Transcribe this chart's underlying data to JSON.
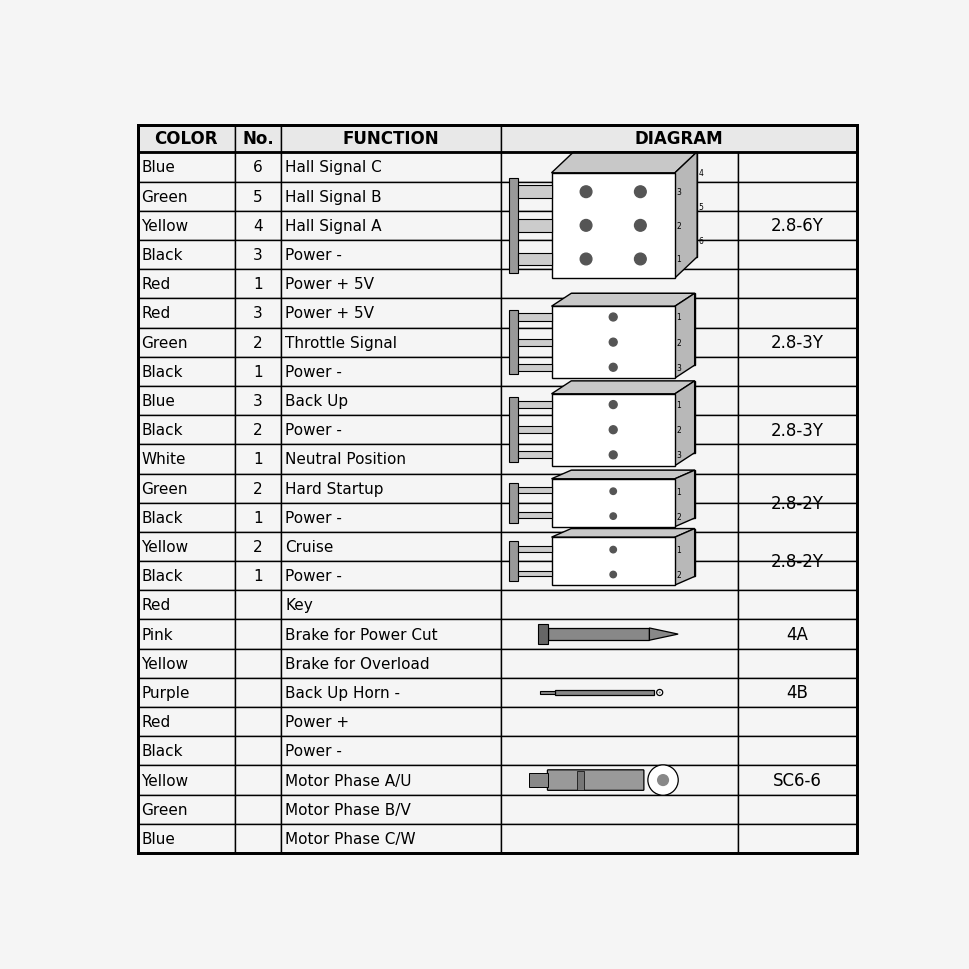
{
  "headers": [
    "COLOR",
    "No.",
    "FUNCTION",
    "DIAGRAM"
  ],
  "rows": [
    {
      "color": "Blue",
      "no": "6",
      "function": "Hall Signal C",
      "group": 0
    },
    {
      "color": "Green",
      "no": "5",
      "function": "Hall Signal B",
      "group": 0
    },
    {
      "color": "Yellow",
      "no": "4",
      "function": "Hall Signal A",
      "group": 0
    },
    {
      "color": "Black",
      "no": "3",
      "function": "Power -",
      "group": 0
    },
    {
      "color": "Red",
      "no": "1",
      "function": "Power + 5V",
      "group": 0
    },
    {
      "color": "Red",
      "no": "3",
      "function": "Power + 5V",
      "group": 1
    },
    {
      "color": "Green",
      "no": "2",
      "function": "Throttle Signal",
      "group": 1
    },
    {
      "color": "Black",
      "no": "1",
      "function": "Power -",
      "group": 1
    },
    {
      "color": "Blue",
      "no": "3",
      "function": "Back Up",
      "group": 2
    },
    {
      "color": "Black",
      "no": "2",
      "function": "Power -",
      "group": 2
    },
    {
      "color": "White",
      "no": "1",
      "function": "Neutral Position",
      "group": 2
    },
    {
      "color": "Green",
      "no": "2",
      "function": "Hard Startup",
      "group": 3
    },
    {
      "color": "Black",
      "no": "1",
      "function": "Power -",
      "group": 3
    },
    {
      "color": "Yellow",
      "no": "2",
      "function": "Cruise",
      "group": 4
    },
    {
      "color": "Black",
      "no": "1",
      "function": "Power -",
      "group": 4
    },
    {
      "color": "Red",
      "no": "",
      "function": "Key",
      "group": 5
    },
    {
      "color": "Pink",
      "no": "",
      "function": "Brake for Power Cut",
      "group": 5
    },
    {
      "color": "Yellow",
      "no": "",
      "function": "Brake for Overload",
      "group": 5
    },
    {
      "color": "Purple",
      "no": "",
      "function": "Back Up Horn -",
      "group": 6
    },
    {
      "color": "Red",
      "no": "",
      "function": "Power +",
      "group": 7
    },
    {
      "color": "Black",
      "no": "",
      "function": "Power -",
      "group": 7
    },
    {
      "color": "Yellow",
      "no": "",
      "function": "Motor Phase A/U",
      "group": 7
    },
    {
      "color": "Green",
      "no": "",
      "function": "Motor Phase B/V",
      "group": 7
    },
    {
      "color": "Blue",
      "no": "",
      "function": "Motor Phase C/W",
      "group": 7
    }
  ],
  "groups": [
    {
      "rows": [
        0,
        1,
        2,
        3,
        4
      ],
      "type": "6pin",
      "label": "2.8-6Y"
    },
    {
      "rows": [
        5,
        6,
        7
      ],
      "type": "3pin",
      "label": "2.8-3Y"
    },
    {
      "rows": [
        8,
        9,
        10
      ],
      "type": "3pin",
      "label": "2.8-3Y"
    },
    {
      "rows": [
        11,
        12
      ],
      "type": "2pin",
      "label": "2.8-2Y"
    },
    {
      "rows": [
        13,
        14
      ],
      "type": "2pin",
      "label": "2.8-2Y"
    },
    {
      "rows": [
        15,
        16,
        17
      ],
      "type": "fuse4A",
      "label": "4A"
    },
    {
      "rows": [
        18
      ],
      "type": "fuse4B",
      "label": "4B"
    },
    {
      "rows": [
        19,
        20,
        21,
        22,
        23
      ],
      "type": "sc66",
      "label": "SC6-6"
    }
  ],
  "bg_color": "#f5f5f5",
  "line_color": "#000000",
  "font_size": 11,
  "header_font_size": 12
}
